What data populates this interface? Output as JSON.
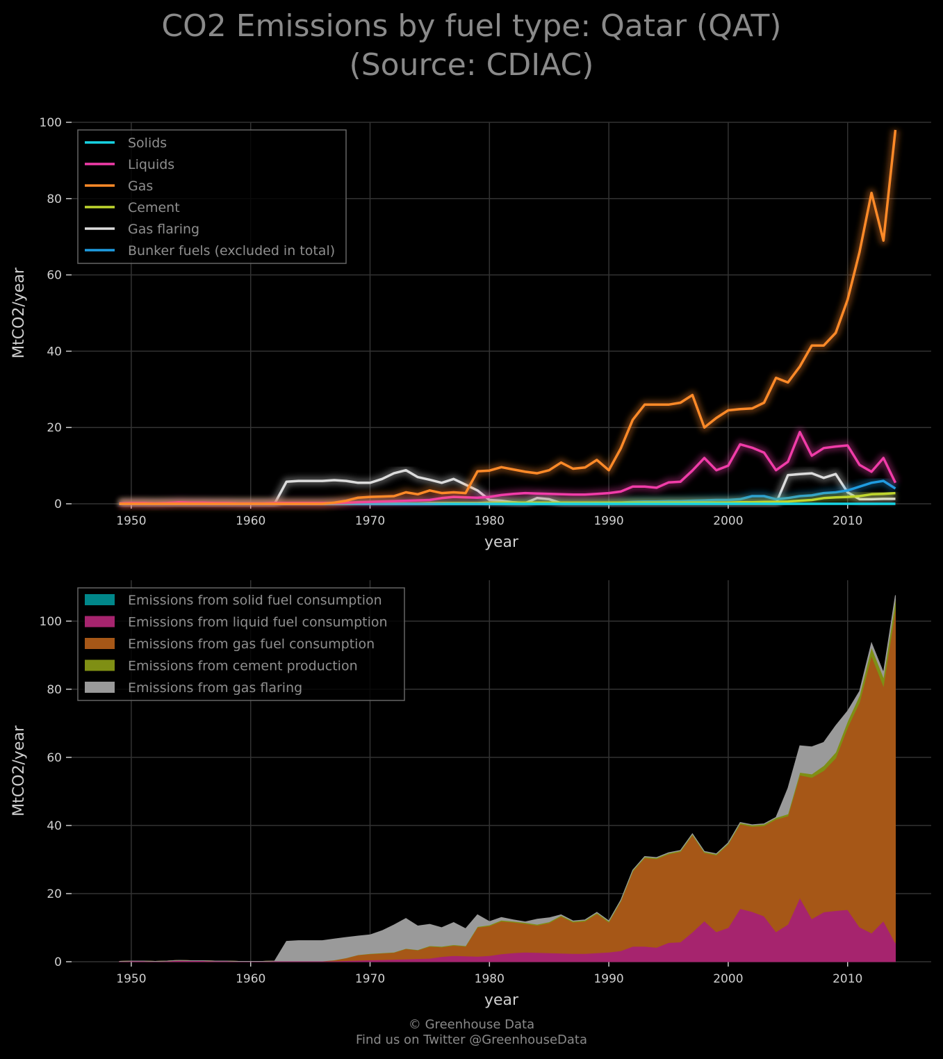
{
  "page": {
    "title_line1": "CO2 Emissions by fuel type: Qatar (QAT)",
    "title_line2": "(Source: CDIAC)",
    "footer_line1": "© Greenhouse Data",
    "footer_line2": "Find us on Twitter @GreenhouseData"
  },
  "chart_data": [
    {
      "type": "line",
      "xlabel": "year",
      "ylabel": "MtCO2/year",
      "xlim": [
        1945,
        2017
      ],
      "ylim": [
        0,
        100
      ],
      "xticks": [
        1950,
        1960,
        1970,
        1980,
        1990,
        2000,
        2010
      ],
      "yticks": [
        0,
        20,
        40,
        60,
        80,
        100
      ],
      "grid": true,
      "legend_position": "top-left",
      "x": [
        1949,
        1950,
        1951,
        1952,
        1953,
        1954,
        1955,
        1956,
        1957,
        1958,
        1959,
        1960,
        1961,
        1962,
        1963,
        1964,
        1965,
        1966,
        1967,
        1968,
        1969,
        1970,
        1971,
        1972,
        1973,
        1974,
        1975,
        1976,
        1977,
        1978,
        1979,
        1980,
        1981,
        1982,
        1983,
        1984,
        1985,
        1986,
        1987,
        1988,
        1989,
        1990,
        1991,
        1992,
        1993,
        1994,
        1995,
        1996,
        1997,
        1998,
        1999,
        2000,
        2001,
        2002,
        2003,
        2004,
        2005,
        2006,
        2007,
        2008,
        2009,
        2010,
        2011,
        2012,
        2013,
        2014
      ],
      "series": [
        {
          "name": "Solids",
          "color": "#17d3e3",
          "values": [
            0,
            0,
            0,
            0,
            0,
            0,
            0,
            0,
            0,
            0,
            0,
            0,
            0,
            0,
            0,
            0,
            0,
            0,
            0,
            0,
            0,
            0,
            0,
            0,
            0,
            0,
            0,
            0,
            0,
            0,
            0,
            0,
            0,
            0,
            0,
            0,
            0,
            0,
            0,
            0,
            0,
            0,
            0,
            0,
            0,
            0,
            0,
            0,
            0,
            0,
            0,
            0,
            0,
            0,
            0,
            0,
            0,
            0,
            0,
            0,
            0,
            0,
            0,
            0,
            0,
            0
          ]
        },
        {
          "name": "Liquids",
          "color": "#f03ca8",
          "values": [
            0.1,
            0.2,
            0.2,
            0.1,
            0.2,
            0.4,
            0.3,
            0.3,
            0.2,
            0.2,
            0.1,
            0.1,
            0.1,
            0.2,
            0.2,
            0.2,
            0.2,
            0.2,
            0.2,
            0.3,
            0.4,
            0.5,
            0.6,
            0.7,
            0.8,
            0.9,
            1.0,
            1.5,
            1.8,
            1.7,
            1.6,
            1.8,
            2.3,
            2.6,
            2.8,
            2.7,
            2.6,
            2.5,
            2.4,
            2.4,
            2.6,
            2.8,
            3.2,
            4.5,
            4.5,
            4.2,
            5.6,
            5.8,
            8.7,
            12.0,
            8.8,
            10.0,
            15.6,
            14.7,
            13.4,
            8.8,
            11.0,
            18.8,
            12.6,
            14.6,
            15.0,
            15.3,
            10.2,
            8.4,
            12.0,
            5.5
          ]
        },
        {
          "name": "Gas",
          "color": "#ff8a28",
          "values": [
            0,
            0,
            0,
            0,
            0,
            0,
            0,
            0,
            0,
            0,
            0,
            0,
            0,
            0,
            0,
            0,
            0,
            0,
            0.3,
            0.8,
            1.6,
            1.8,
            1.9,
            2.0,
            3.0,
            2.5,
            3.5,
            2.8,
            3.0,
            2.8,
            8.5,
            8.7,
            9.6,
            9.0,
            8.4,
            8.0,
            8.8,
            10.8,
            9.2,
            9.5,
            11.5,
            8.8,
            14.5,
            22.0,
            26.0,
            26.0,
            26.0,
            26.5,
            28.5,
            20.0,
            22.5,
            24.5,
            24.8,
            25.0,
            26.5,
            33.0,
            31.8,
            36.0,
            41.5,
            41.5,
            44.8,
            53.5,
            66.0,
            81.5,
            69.0,
            98.0
          ]
        },
        {
          "name": "Cement",
          "color": "#bfd62e",
          "values": [
            0,
            0,
            0,
            0,
            0,
            0,
            0,
            0,
            0,
            0,
            0,
            0,
            0,
            0,
            0,
            0,
            0,
            0,
            0,
            0.05,
            0.05,
            0.1,
            0.1,
            0.1,
            0.1,
            0.1,
            0.2,
            0.2,
            0.2,
            0.2,
            0.2,
            0.3,
            0.3,
            0.3,
            0.3,
            0.3,
            0.3,
            0.3,
            0.3,
            0.3,
            0.3,
            0.3,
            0.3,
            0.3,
            0.3,
            0.3,
            0.3,
            0.3,
            0.3,
            0.3,
            0.3,
            0.3,
            0.4,
            0.4,
            0.5,
            0.5,
            0.6,
            0.8,
            1.0,
            1.5,
            1.7,
            1.8,
            2.0,
            2.5,
            2.6,
            2.8
          ]
        },
        {
          "name": "Gas flaring",
          "color": "#dcdcdc",
          "values": [
            0,
            0,
            0,
            0,
            0,
            0,
            0,
            0,
            0,
            0,
            0,
            0,
            0,
            0,
            5.8,
            6.0,
            6.0,
            6.0,
            6.2,
            6.0,
            5.5,
            5.5,
            6.5,
            8.0,
            8.8,
            7.0,
            6.3,
            5.5,
            6.5,
            5.0,
            3.5,
            1.0,
            0.8,
            0.4,
            0.2,
            1.5,
            1.2,
            0.2,
            0.1,
            0.1,
            0.1,
            0.1,
            0.1,
            0.1,
            0.1,
            0.1,
            0.1,
            0.1,
            0.1,
            0.1,
            0.1,
            0.1,
            0.1,
            0.1,
            0.1,
            0.1,
            7.5,
            7.8,
            8.0,
            6.8,
            7.8,
            3.0,
            1.2,
            1.2,
            1.3,
            1.3
          ]
        },
        {
          "name": "Bunker fuels (excluded in total)",
          "color": "#1f9ce0",
          "values": [
            0,
            0,
            0,
            0,
            0,
            0,
            0,
            0,
            0,
            0,
            0,
            0,
            0,
            0,
            0,
            0,
            0,
            0,
            0,
            0,
            0,
            0,
            0,
            0,
            0,
            0,
            0,
            0,
            0,
            0,
            0,
            0,
            0,
            0,
            0,
            0,
            0,
            0,
            0,
            0,
            0,
            0,
            0.3,
            0.5,
            0.6,
            0.6,
            0.7,
            0.7,
            0.8,
            0.9,
            1.0,
            1.0,
            1.2,
            2.0,
            2.0,
            1.2,
            1.5,
            2.0,
            2.2,
            2.8,
            3.0,
            3.5,
            4.5,
            5.5,
            6.0,
            4.0
          ]
        }
      ]
    },
    {
      "type": "area",
      "stacked": true,
      "xlabel": "year",
      "ylabel": "MtCO2/year",
      "xlim": [
        1945,
        2017
      ],
      "ylim": [
        0,
        112
      ],
      "xticks": [
        1950,
        1960,
        1970,
        1980,
        1990,
        2000,
        2010
      ],
      "yticks": [
        0,
        20,
        40,
        60,
        80,
        100
      ],
      "grid": true,
      "legend_position": "top-left",
      "series": [
        {
          "name": "Emissions from solid fuel consumption",
          "color": "#00878a"
        },
        {
          "name": "Emissions from liquid fuel consumption",
          "color": "#a6246e"
        },
        {
          "name": "Emissions from gas fuel consumption",
          "color": "#a65717"
        },
        {
          "name": "Emissions from cement production",
          "color": "#7f8f14"
        },
        {
          "name": "Emissions from gas flaring",
          "color": "#9a9a9a"
        }
      ]
    }
  ]
}
